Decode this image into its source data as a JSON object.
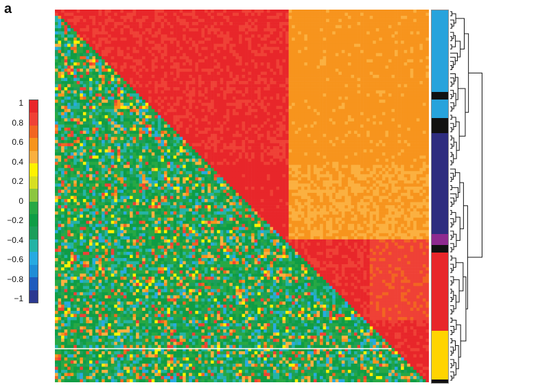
{
  "panel_label": "a",
  "colors": {
    "scale": [
      "#2b3990",
      "#1e5bbd",
      "#1f8dd6",
      "#27aae1",
      "#25b3a5",
      "#1c9e5a",
      "#0f9d45",
      "#27a844",
      "#8cc63f",
      "#d7df23",
      "#fff200",
      "#fbb040",
      "#f7941d",
      "#f26522",
      "#ef4136",
      "#e8262a"
    ]
  },
  "colorbar": {
    "ticks": [
      "1",
      "0.8",
      "0.6",
      "0.4",
      "0.2",
      "0",
      "−0.2",
      "−0.4",
      "−0.6",
      "−0.8",
      "−1"
    ]
  },
  "chart_data": {
    "type": "heatmap",
    "description_type": "correlation matrix with hierarchical clustering dendrogram",
    "value_range": [
      -1,
      1
    ],
    "lower_triangle_typical_range": [
      -0.6,
      0.4
    ],
    "upper_triangle_blocks": [
      {
        "block": "top-left cluster",
        "value_approx": 0.95
      },
      {
        "block": "top-right region",
        "value_approx": 0.55
      },
      {
        "block": "middle cluster",
        "value_approx": 0.95
      },
      {
        "block": "lower-right cluster",
        "value_approx": 0.85
      }
    ],
    "annotation_bar": [
      {
        "color": "#27a3dc",
        "share": 0.22
      },
      {
        "color": "#111111",
        "share": 0.02
      },
      {
        "color": "#27a3dc",
        "share": 0.05
      },
      {
        "color": "#111111",
        "share": 0.04
      },
      {
        "color": "#2e2d7f",
        "share": 0.27
      },
      {
        "color": "#8e2a8f",
        "share": 0.03
      },
      {
        "color": "#111111",
        "share": 0.02
      },
      {
        "color": "#e8262a",
        "share": 0.21
      },
      {
        "color": "#ffd400",
        "share": 0.13
      },
      {
        "color": "#111111",
        "share": 0.02
      }
    ],
    "legend": "none",
    "grid": false
  }
}
